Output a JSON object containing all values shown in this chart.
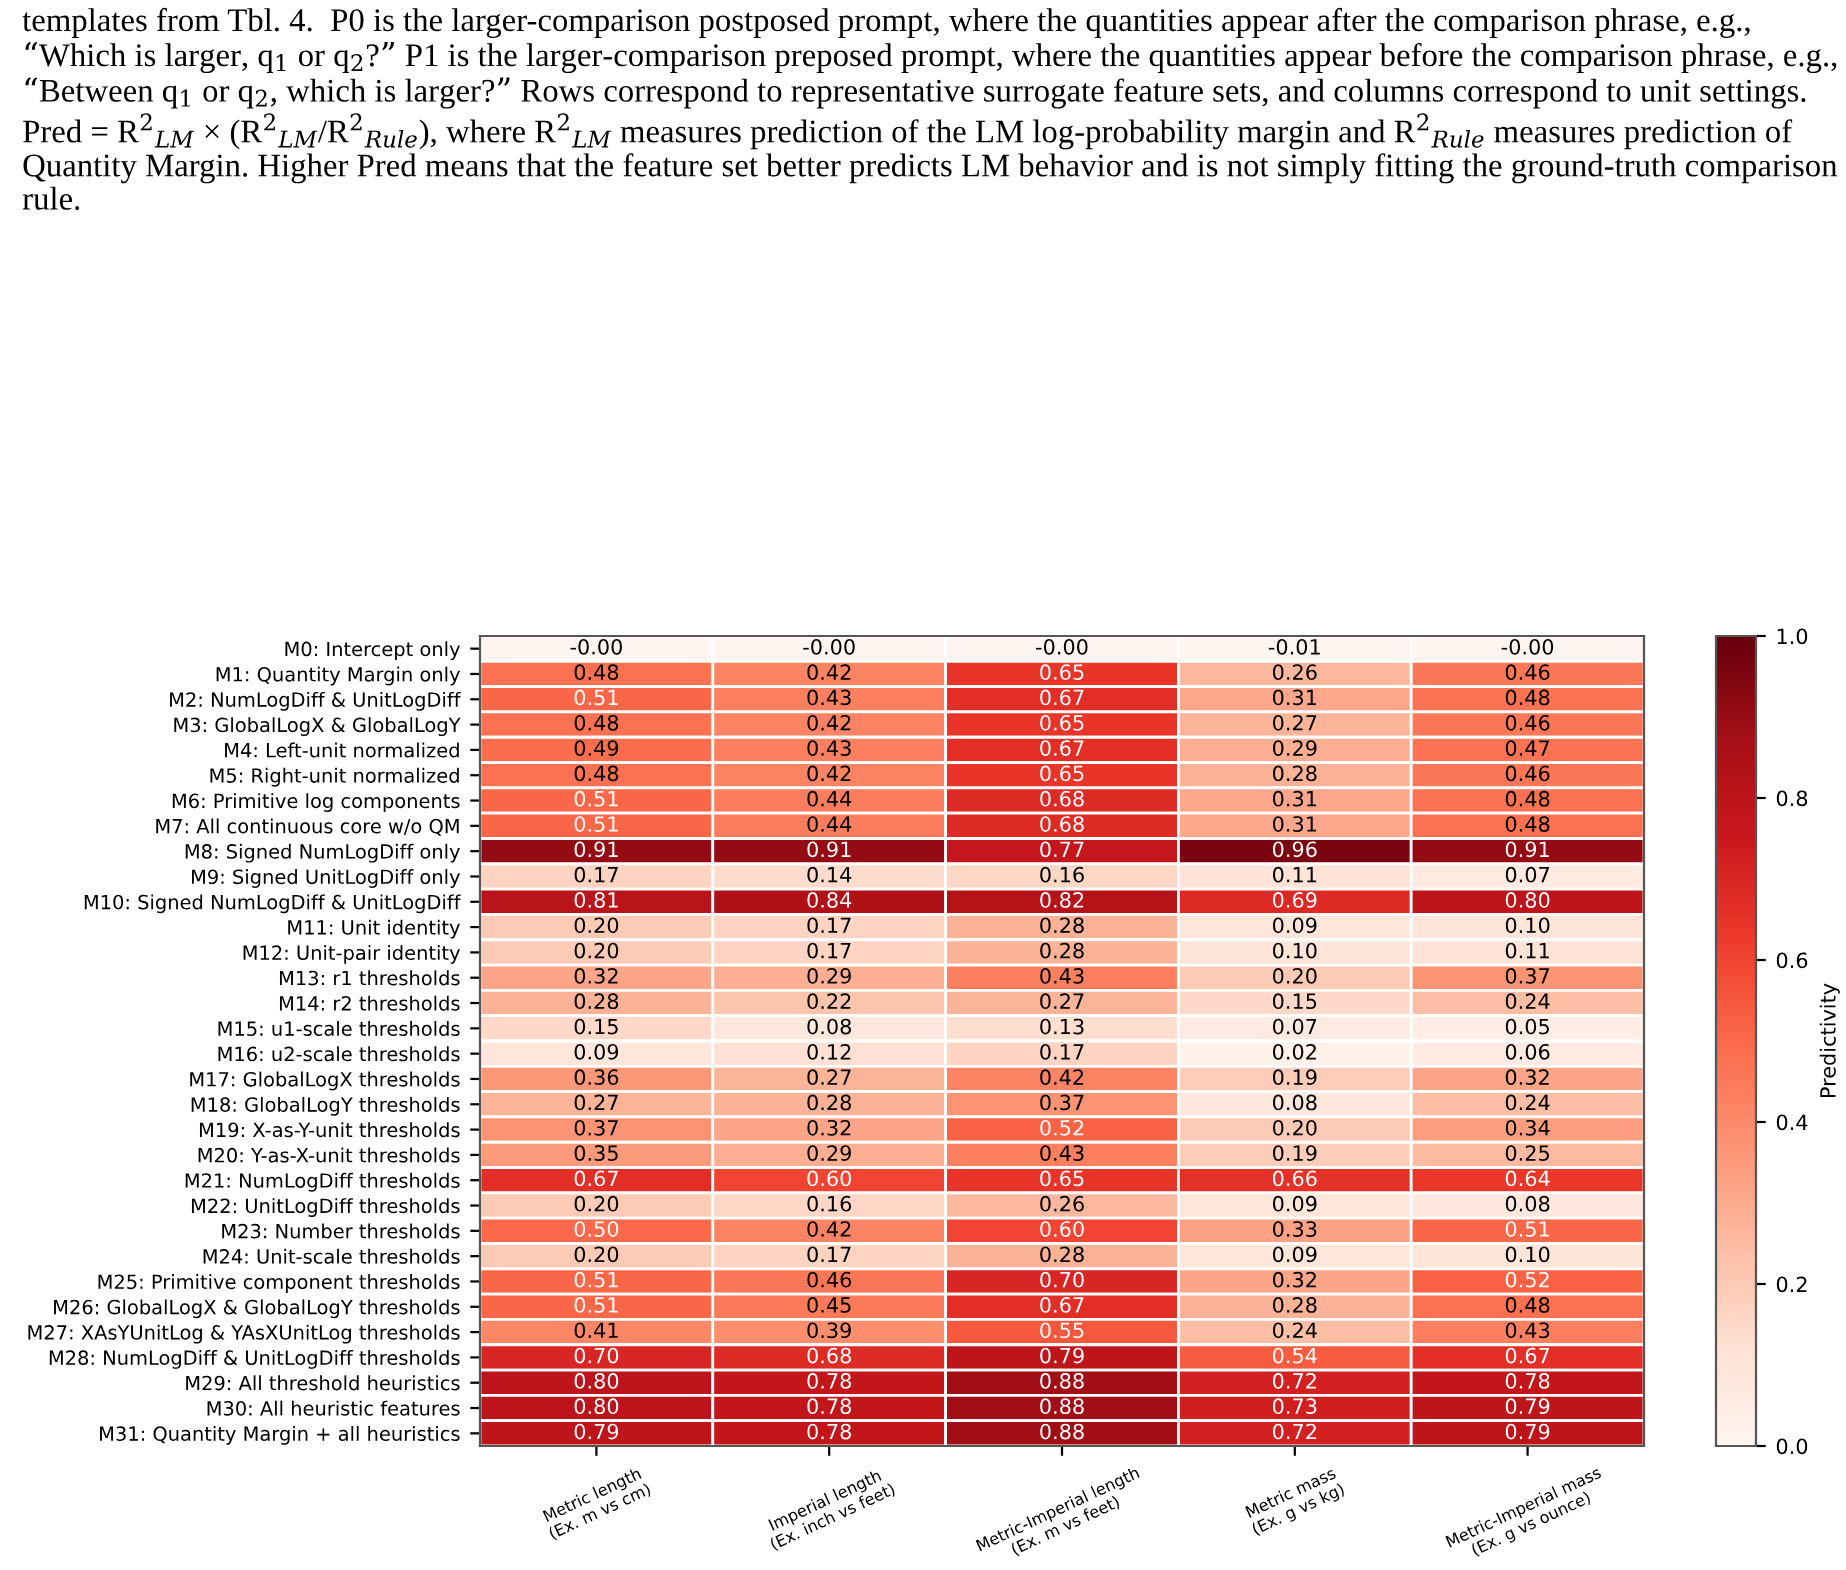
{
  "chart_data": {
    "type": "heatmap",
    "annotations": [
      "templates from Tbl. 4.  P0 is the larger-comparison postposed prompt, where the quantities appear after the comparison phrase, e.g., “Which is larger, q$_{1}$ or q$_{2}$?” P1 is the larger-comparison preposed prompt, where the quantities appear before the comparison phrase, e.g., “Between q$_{1}$ or q$_{2}$, which is larger?” Rows correspond to representative surrogate feature sets, and columns correspond to unit settings. Pred = R$^{2}$$_{LM}$ × (R$^{2}$$_{LM}$/R$^{2}$$_{Rule}$), where R$^{2}$$_{LM}$ measures prediction of the LM log-probability margin and R$^{2}$$_{Rule}$ measures prediction of Quantity Margin. Higher Pred means that the feature set better predicts LM behavior and is not simply fitting the ground-truth comparison rule."
    ],
    "categories": [
      "Metric length\n(Ex. m vs cm)",
      "Imperial length\n(Ex. inch vs feet)",
      "Metric-Imperial length\n(Ex. m vs feet)",
      "Metric mass\n(Ex. g vs kg)",
      "Metric-Imperial mass\n(Ex. g vs ounce)"
    ],
    "y_categories": [
      "M0: Intercept only",
      "M1: Quantity Margin only",
      "M2: NumLogDiff & UnitLogDiff",
      "M3: GlobalLogX & GlobalLogY",
      "M4: Left-unit normalized",
      "M5: Right-unit normalized",
      "M6: Primitive log components",
      "M7: All continuous core w/o QM",
      "M8: Signed NumLogDiff only",
      "M9: Signed UnitLogDiff only",
      "M10: Signed NumLogDiff & UnitLogDiff",
      "M11: Unit identity",
      "M12: Unit-pair identity",
      "M13: r1 thresholds",
      "M14: r2 thresholds",
      "M15: u1-scale thresholds",
      "M16: u2-scale thresholds",
      "M17: GlobalLogX thresholds",
      "M18: GlobalLogY thresholds",
      "M19: X-as-Y-unit thresholds",
      "M20: Y-as-X-unit thresholds",
      "M21: NumLogDiff thresholds",
      "M22: UnitLogDiff thresholds",
      "M23: Number thresholds",
      "M24: Unit-scale thresholds",
      "M25: Primitive component thresholds",
      "M26: GlobalLogX & GlobalLogY thresholds",
      "M27: XAsYUnitLog & YAsXUnitLog thresholds",
      "M28: NumLogDiff & UnitLogDiff thresholds",
      "M29: All threshold heuristics",
      "M30: All heuristic features",
      "M31: Quantity Margin + all heuristics"
    ],
    "cells": [
      [
        -0.0,
        -0.0,
        -0.0,
        -0.01,
        -0.0
      ],
      [
        0.48,
        0.42,
        0.65,
        0.26,
        0.46
      ],
      [
        0.51,
        0.43,
        0.67,
        0.31,
        0.48
      ],
      [
        0.48,
        0.42,
        0.65,
        0.27,
        0.46
      ],
      [
        0.49,
        0.43,
        0.67,
        0.29,
        0.47
      ],
      [
        0.48,
        0.42,
        0.65,
        0.28,
        0.46
      ],
      [
        0.51,
        0.44,
        0.68,
        0.31,
        0.48
      ],
      [
        0.51,
        0.44,
        0.68,
        0.31,
        0.48
      ],
      [
        0.91,
        0.91,
        0.77,
        0.96,
        0.91
      ],
      [
        0.17,
        0.14,
        0.16,
        0.11,
        0.07
      ],
      [
        0.81,
        0.84,
        0.82,
        0.69,
        0.8
      ],
      [
        0.2,
        0.17,
        0.28,
        0.09,
        0.1
      ],
      [
        0.2,
        0.17,
        0.28,
        0.1,
        0.11
      ],
      [
        0.32,
        0.29,
        0.43,
        0.2,
        0.37
      ],
      [
        0.28,
        0.22,
        0.27,
        0.15,
        0.24
      ],
      [
        0.15,
        0.08,
        0.13,
        0.07,
        0.05
      ],
      [
        0.09,
        0.12,
        0.17,
        0.02,
        0.06
      ],
      [
        0.36,
        0.27,
        0.42,
        0.19,
        0.32
      ],
      [
        0.27,
        0.28,
        0.37,
        0.08,
        0.24
      ],
      [
        0.37,
        0.32,
        0.52,
        0.2,
        0.34
      ],
      [
        0.35,
        0.29,
        0.43,
        0.19,
        0.25
      ],
      [
        0.67,
        0.6,
        0.65,
        0.66,
        0.64
      ],
      [
        0.2,
        0.16,
        0.26,
        0.09,
        0.08
      ],
      [
        0.5,
        0.42,
        0.6,
        0.33,
        0.51
      ],
      [
        0.2,
        0.17,
        0.28,
        0.09,
        0.1
      ],
      [
        0.51,
        0.46,
        0.7,
        0.32,
        0.52
      ],
      [
        0.51,
        0.45,
        0.67,
        0.28,
        0.48
      ],
      [
        0.41,
        0.39,
        0.55,
        0.24,
        0.43
      ],
      [
        0.7,
        0.68,
        0.79,
        0.54,
        0.67
      ],
      [
        0.8,
        0.78,
        0.88,
        0.72,
        0.78
      ],
      [
        0.8,
        0.78,
        0.88,
        0.73,
        0.79
      ],
      [
        0.79,
        0.78,
        0.88,
        0.72,
        0.79
      ]
    ],
    "cell_labels": [
      [
        "-0.00",
        "-0.00",
        "-0.00",
        "-0.01",
        "-0.00"
      ],
      [
        "0.48",
        "0.42",
        "0.65",
        "0.26",
        "0.46"
      ],
      [
        "0.51",
        "0.43",
        "0.67",
        "0.31",
        "0.48"
      ],
      [
        "0.48",
        "0.42",
        "0.65",
        "0.27",
        "0.46"
      ],
      [
        "0.49",
        "0.43",
        "0.67",
        "0.29",
        "0.47"
      ],
      [
        "0.48",
        "0.42",
        "0.65",
        "0.28",
        "0.46"
      ],
      [
        "0.51",
        "0.44",
        "0.68",
        "0.31",
        "0.48"
      ],
      [
        "0.51",
        "0.44",
        "0.68",
        "0.31",
        "0.48"
      ],
      [
        "0.91",
        "0.91",
        "0.77",
        "0.96",
        "0.91"
      ],
      [
        "0.17",
        "0.14",
        "0.16",
        "0.11",
        "0.07"
      ],
      [
        "0.81",
        "0.84",
        "0.82",
        "0.69",
        "0.80"
      ],
      [
        "0.20",
        "0.17",
        "0.28",
        "0.09",
        "0.10"
      ],
      [
        "0.20",
        "0.17",
        "0.28",
        "0.10",
        "0.11"
      ],
      [
        "0.32",
        "0.29",
        "0.43",
        "0.20",
        "0.37"
      ],
      [
        "0.28",
        "0.22",
        "0.27",
        "0.15",
        "0.24"
      ],
      [
        "0.15",
        "0.08",
        "0.13",
        "0.07",
        "0.05"
      ],
      [
        "0.09",
        "0.12",
        "0.17",
        "0.02",
        "0.06"
      ],
      [
        "0.36",
        "0.27",
        "0.42",
        "0.19",
        "0.32"
      ],
      [
        "0.27",
        "0.28",
        "0.37",
        "0.08",
        "0.24"
      ],
      [
        "0.37",
        "0.32",
        "0.52",
        "0.20",
        "0.34"
      ],
      [
        "0.35",
        "0.29",
        "0.43",
        "0.19",
        "0.25"
      ],
      [
        "0.67",
        "0.60",
        "0.65",
        "0.66",
        "0.64"
      ],
      [
        "0.20",
        "0.16",
        "0.26",
        "0.09",
        "0.08"
      ],
      [
        "0.50",
        "0.42",
        "0.60",
        "0.33",
        "0.51"
      ],
      [
        "0.20",
        "0.17",
        "0.28",
        "0.09",
        "0.10"
      ],
      [
        "0.51",
        "0.46",
        "0.70",
        "0.32",
        "0.52"
      ],
      [
        "0.51",
        "0.45",
        "0.67",
        "0.28",
        "0.48"
      ],
      [
        "0.41",
        "0.39",
        "0.55",
        "0.24",
        "0.43"
      ],
      [
        "0.70",
        "0.68",
        "0.79",
        "0.54",
        "0.67"
      ],
      [
        "0.80",
        "0.78",
        "0.88",
        "0.72",
        "0.78"
      ],
      [
        "0.80",
        "0.78",
        "0.88",
        "0.73",
        "0.79"
      ],
      [
        "0.79",
        "0.78",
        "0.88",
        "0.72",
        "0.79"
      ]
    ],
    "clabel": "Predictivity",
    "clim": [
      0.0,
      1.0
    ],
    "cticks": [
      {
        "value": 0,
        "label": "0.0"
      },
      0.2,
      0.4,
      0.6,
      0.8,
      {
        "value": 1,
        "label": "1.0"
      }
    ]
  }
}
